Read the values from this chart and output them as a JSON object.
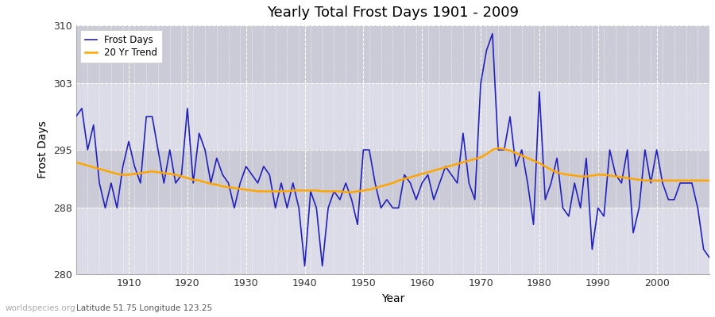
{
  "title": "Yearly Total Frost Days 1901 - 2009",
  "xlabel": "Year",
  "ylabel": "Frost Days",
  "lat_lon_label": "Latitude 51.75 Longitude 123.25",
  "watermark": "worldspecies.org",
  "line_color": "#2222bb",
  "trend_color": "#FFA500",
  "bg_color": "#dcdce8",
  "band_color": "#cbcbd8",
  "ylim": [
    280,
    310
  ],
  "xlim": [
    1901,
    2009
  ],
  "yticks": [
    280,
    288,
    295,
    303,
    310
  ],
  "xticks": [
    1910,
    1920,
    1930,
    1940,
    1950,
    1960,
    1970,
    1980,
    1990,
    2000
  ],
  "years": [
    1901,
    1902,
    1903,
    1904,
    1905,
    1906,
    1907,
    1908,
    1909,
    1910,
    1911,
    1912,
    1913,
    1914,
    1915,
    1916,
    1917,
    1918,
    1919,
    1920,
    1921,
    1922,
    1923,
    1924,
    1925,
    1926,
    1927,
    1928,
    1929,
    1930,
    1931,
    1932,
    1933,
    1934,
    1935,
    1936,
    1937,
    1938,
    1939,
    1940,
    1941,
    1942,
    1943,
    1944,
    1945,
    1946,
    1947,
    1948,
    1949,
    1950,
    1951,
    1952,
    1953,
    1954,
    1955,
    1956,
    1957,
    1958,
    1959,
    1960,
    1961,
    1962,
    1963,
    1964,
    1965,
    1966,
    1967,
    1968,
    1969,
    1970,
    1971,
    1972,
    1973,
    1974,
    1975,
    1976,
    1977,
    1978,
    1979,
    1980,
    1981,
    1982,
    1983,
    1984,
    1985,
    1986,
    1987,
    1988,
    1989,
    1990,
    1991,
    1992,
    1993,
    1994,
    1995,
    1996,
    1997,
    1998,
    1999,
    2000,
    2001,
    2002,
    2003,
    2004,
    2005,
    2006,
    2007,
    2008,
    2009
  ],
  "frost_days": [
    299,
    300,
    295,
    298,
    291,
    288,
    291,
    288,
    293,
    296,
    293,
    291,
    299,
    299,
    295,
    291,
    295,
    291,
    292,
    300,
    291,
    297,
    295,
    291,
    294,
    292,
    291,
    288,
    291,
    293,
    292,
    291,
    293,
    292,
    288,
    291,
    288,
    291,
    288,
    281,
    290,
    288,
    281,
    288,
    290,
    289,
    291,
    289,
    286,
    295,
    295,
    291,
    288,
    289,
    288,
    288,
    292,
    291,
    289,
    291,
    292,
    289,
    291,
    293,
    292,
    291,
    297,
    291,
    289,
    303,
    307,
    309,
    295,
    295,
    299,
    293,
    295,
    291,
    286,
    302,
    289,
    291,
    294,
    288,
    287,
    291,
    288,
    294,
    283,
    288,
    287,
    295,
    292,
    291,
    295,
    285,
    288,
    295,
    291,
    295,
    291,
    289,
    289,
    291,
    291,
    291,
    288,
    283,
    282
  ],
  "trend": [
    293.5,
    293.3,
    293.1,
    292.9,
    292.7,
    292.5,
    292.3,
    292.1,
    292.0,
    292.0,
    292.1,
    292.2,
    292.3,
    292.4,
    292.3,
    292.2,
    292.1,
    292.0,
    291.8,
    291.6,
    291.4,
    291.3,
    291.1,
    290.9,
    290.8,
    290.6,
    290.5,
    290.4,
    290.3,
    290.2,
    290.1,
    290.0,
    290.0,
    290.0,
    290.0,
    290.0,
    290.0,
    290.1,
    290.1,
    290.1,
    290.1,
    290.1,
    290.0,
    290.0,
    290.0,
    290.0,
    289.9,
    289.9,
    290.0,
    290.1,
    290.2,
    290.4,
    290.6,
    290.8,
    291.0,
    291.3,
    291.5,
    291.7,
    291.9,
    292.1,
    292.3,
    292.5,
    292.7,
    292.9,
    293.1,
    293.3,
    293.5,
    293.7,
    293.9,
    294.1,
    294.5,
    295.0,
    295.2,
    295.1,
    294.9,
    294.6,
    294.3,
    294.0,
    293.7,
    293.4,
    293.0,
    292.6,
    292.3,
    292.1,
    292.0,
    291.9,
    291.8,
    291.8,
    291.9,
    292.0,
    292.0,
    291.9,
    291.8,
    291.7,
    291.6,
    291.5,
    291.4,
    291.3,
    291.3,
    291.3,
    291.3,
    291.3,
    291.3,
    291.3,
    291.3,
    291.3,
    291.3,
    291.3,
    291.3
  ]
}
